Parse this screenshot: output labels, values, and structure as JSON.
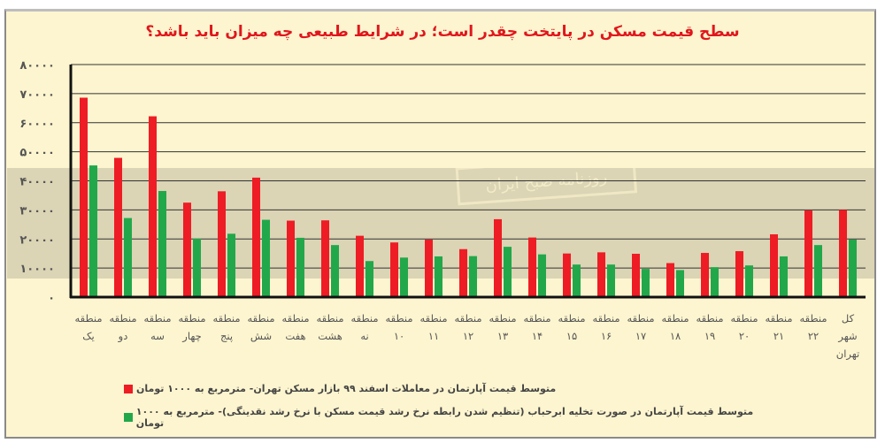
{
  "chart_data": {
    "type": "bar",
    "title": "سطح قیمت مسکن در پایتخت چقدر است؛ در شرایط طبیعی چه میزان باید باشد؟",
    "categories": [
      [
        "منطقه",
        "یک"
      ],
      [
        "منطقه",
        "دو"
      ],
      [
        "منطقه",
        "سه"
      ],
      [
        "منطقه",
        "چهار"
      ],
      [
        "منطقه",
        "پنج"
      ],
      [
        "منطقه",
        "شش"
      ],
      [
        "منطقه",
        "هفت"
      ],
      [
        "منطقه",
        "هشت"
      ],
      [
        "منطقه",
        "نه"
      ],
      [
        "منطقه",
        "۱۰"
      ],
      [
        "منطقه",
        "۱۱"
      ],
      [
        "منطقه",
        "۱۲"
      ],
      [
        "منطقه",
        "۱۳"
      ],
      [
        "منطقه",
        "۱۴"
      ],
      [
        "منطقه",
        "۱۵"
      ],
      [
        "منطقه",
        "۱۶"
      ],
      [
        "منطقه",
        "۱۷"
      ],
      [
        "منطقه",
        "۱۸"
      ],
      [
        "منطقه",
        "۱۹"
      ],
      [
        "منطقه",
        "۲۰"
      ],
      [
        "منطقه",
        "۲۱"
      ],
      [
        "منطقه",
        "۲۲"
      ],
      [
        "کل",
        "شهر",
        "تهران"
      ]
    ],
    "series": [
      {
        "name": "متوسط قیمت آپارتمان در معاملات اسفند ۹۹ بازار مسکن تهران- مترمربع به ۱۰۰۰ تومان",
        "color": "#ee1c24",
        "values": [
          68600,
          47900,
          62200,
          32500,
          36400,
          41100,
          26300,
          26400,
          21100,
          18800,
          19800,
          16500,
          26800,
          20500,
          15000,
          15400,
          14900,
          11700,
          15200,
          15800,
          21600,
          29800,
          30000
        ]
      },
      {
        "name": "متوسط قیمت آپارتمان در صورت تخلیه ابرحباب (تنظیم شدن رابطه نرخ رشد قیمت مسکن با نرخ رشد نقدینگی)- مترمربع به ۱۰۰۰ تومان",
        "color": "#22a84a",
        "values": [
          45300,
          27200,
          36500,
          20100,
          21800,
          26600,
          20400,
          17900,
          12400,
          13600,
          14000,
          14100,
          17300,
          14700,
          11200,
          11200,
          9700,
          9300,
          10300,
          10900,
          14000,
          17900,
          19800
        ]
      }
    ],
    "yticks": [
      0,
      10000,
      20000,
      30000,
      40000,
      50000,
      60000,
      70000,
      80000
    ],
    "ytick_labels": [
      "۰",
      "۱۰۰۰۰",
      "۲۰۰۰۰",
      "۳۰۰۰۰",
      "۴۰۰۰۰",
      "۵۰۰۰۰",
      "۶۰۰۰۰",
      "۷۰۰۰۰",
      "۸۰۰۰۰"
    ],
    "ylim": [
      0,
      80000
    ],
    "grid": true,
    "legend_placement": "bottom"
  },
  "watermark": "روزنامه صبح ایران"
}
